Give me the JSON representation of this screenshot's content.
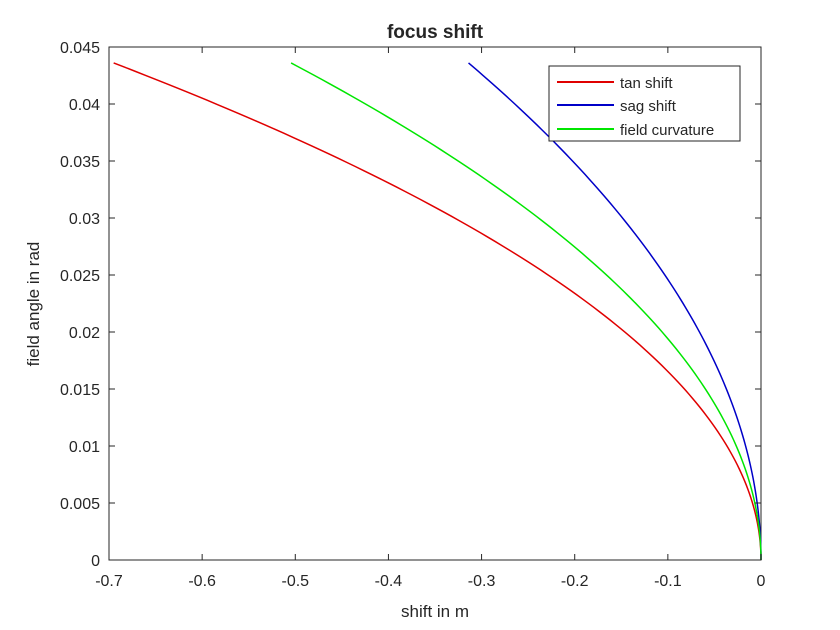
{
  "chart_data": {
    "type": "line",
    "title": "focus shift",
    "xlabel": "shift in m",
    "ylabel": "field angle in rad",
    "xlim": [
      -0.7,
      0
    ],
    "ylim": [
      0,
      0.045
    ],
    "xticks": [
      -0.7,
      -0.6,
      -0.5,
      -0.4,
      -0.3,
      -0.2,
      -0.1,
      0
    ],
    "xtick_labels": [
      "-0.7",
      "-0.6",
      "-0.5",
      "-0.4",
      "-0.3",
      "-0.2",
      "-0.1",
      "0"
    ],
    "yticks": [
      0,
      0.005,
      0.01,
      0.015,
      0.02,
      0.025,
      0.03,
      0.035,
      0.04,
      0.045
    ],
    "ytick_labels": [
      "0",
      "0.005",
      "0.01",
      "0.015",
      "0.02",
      "0.025",
      "0.03",
      "0.035",
      "0.04",
      "0.045"
    ],
    "grid": false,
    "legend_position": "top-right",
    "series": [
      {
        "name": "tan shift",
        "color": "#e00000",
        "x": [
          0,
          -0.0106,
          -0.0425,
          -0.0956,
          -0.17,
          -0.266,
          -0.383,
          -0.52,
          -0.695
        ],
        "y": [
          0,
          0.00545,
          0.0109,
          0.01635,
          0.0218,
          0.02725,
          0.0327,
          0.03815,
          0.0436
        ]
      },
      {
        "name": "sag shift",
        "color": "#0000c8",
        "x": [
          0,
          -0.0048,
          -0.0193,
          -0.0435,
          -0.0773,
          -0.121,
          -0.174,
          -0.237,
          -0.314
        ],
        "y": [
          0,
          0.00545,
          0.0109,
          0.01635,
          0.0218,
          0.02725,
          0.0327,
          0.03815,
          0.0436
        ]
      },
      {
        "name": "field curvature",
        "color": "#00e600",
        "x": [
          0,
          -0.0077,
          -0.0309,
          -0.0695,
          -0.1237,
          -0.1935,
          -0.2785,
          -0.3785,
          -0.5045
        ],
        "y": [
          0,
          0.00545,
          0.0109,
          0.01635,
          0.0218,
          0.02725,
          0.0327,
          0.03815,
          0.0436
        ]
      }
    ]
  }
}
